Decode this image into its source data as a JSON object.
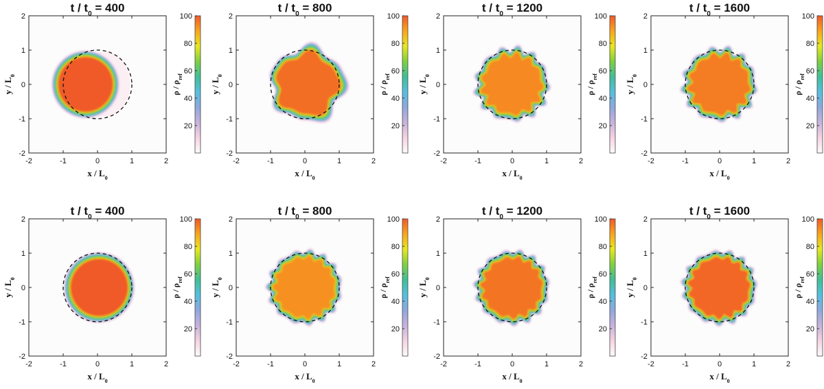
{
  "chart_data": {
    "type": "heatmap",
    "description_type": "2D density maps (8 panels, 2 rows x 4 columns)",
    "xlabel_base": "x / L",
    "xlabel_sub": "0",
    "ylabel_base": "y / L",
    "ylabel_sub": "0",
    "title_prefix": "t / t",
    "title_sub": "0",
    "xlim": [
      -2,
      2
    ],
    "ylim": [
      -2,
      2
    ],
    "xticks": [
      "-2",
      "-1",
      "0",
      "1",
      "2"
    ],
    "yticks": [
      "-2",
      "-1",
      "0",
      "1",
      "2"
    ],
    "colorbar": {
      "label_base": "ρ / ρ",
      "label_sub": "ref",
      "range": [
        0,
        100
      ],
      "ticks": [
        "20",
        "40",
        "60",
        "80",
        "100"
      ],
      "colors": [
        "#fdfbfb",
        "#f6d3e3",
        "#c7b2dc",
        "#8fa8dd",
        "#55bfe0",
        "#3fbf98",
        "#7fd040",
        "#e7e81e",
        "#f9a51e",
        "#f05a28"
      ]
    },
    "reference_circle": {
      "center": [
        0,
        0
      ],
      "radius": 1,
      "style": "dashed"
    },
    "panels": [
      {
        "row": 1,
        "time": "400",
        "cx": -0.35,
        "cy": 0.0,
        "r": 0.9,
        "core_density": 100,
        "perturbation": "none"
      },
      {
        "row": 1,
        "time": "800",
        "cx": 0.0,
        "cy": 0.0,
        "r": 1.0,
        "core_density": 97,
        "perturbation": "large-lobed"
      },
      {
        "row": 1,
        "time": "1200",
        "cx": 0.0,
        "cy": 0.0,
        "r": 0.97,
        "core_density": 93,
        "perturbation": "strong"
      },
      {
        "row": 1,
        "time": "1600",
        "cx": 0.0,
        "cy": 0.0,
        "r": 0.97,
        "core_density": 95,
        "perturbation": "strong"
      },
      {
        "row": 2,
        "time": "400",
        "cx": 0.05,
        "cy": 0.0,
        "r": 0.94,
        "core_density": 100,
        "perturbation": "none"
      },
      {
        "row": 2,
        "time": "800",
        "cx": 0.0,
        "cy": 0.0,
        "r": 0.98,
        "core_density": 92,
        "perturbation": "moderate"
      },
      {
        "row": 2,
        "time": "1200",
        "cx": 0.0,
        "cy": 0.0,
        "r": 0.98,
        "core_density": 96,
        "perturbation": "moderate"
      },
      {
        "row": 2,
        "time": "1600",
        "cx": 0.0,
        "cy": 0.0,
        "r": 0.98,
        "core_density": 98,
        "perturbation": "moderate"
      }
    ]
  }
}
